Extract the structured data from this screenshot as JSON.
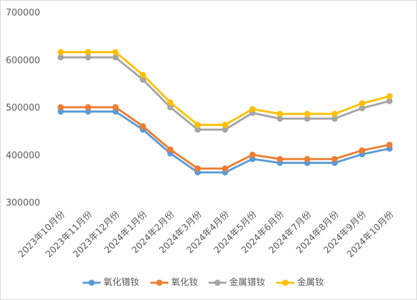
{
  "chart_data": {
    "type": "line",
    "categories": [
      "2023年10月份",
      "2023年11月份",
      "2023年12月份",
      "2024年1月份",
      "2024年2月份",
      "2024年3月份",
      "2024年4月份",
      "2024年5月份",
      "2024年6月份",
      "2024年7月份",
      "2024年8月份",
      "2024年9月份",
      "2024年10月份"
    ],
    "series": [
      {
        "name": "氧化镨钕",
        "color": "#5b9bd5",
        "values": [
          493000,
          493000,
          493000,
          455000,
          405000,
          365000,
          365000,
          393000,
          385000,
          385000,
          385000,
          403000,
          415000
        ]
      },
      {
        "name": "氧化钕",
        "color": "#ed7d31",
        "values": [
          502000,
          502000,
          502000,
          462000,
          413000,
          373000,
          373000,
          402000,
          393000,
          393000,
          393000,
          411000,
          423000
        ]
      },
      {
        "name": "金属镨钕",
        "color": "#a5a5a5",
        "values": [
          607000,
          607000,
          607000,
          560000,
          502000,
          455000,
          455000,
          490000,
          478000,
          478000,
          478000,
          500000,
          515000
        ]
      },
      {
        "name": "金属钕",
        "color": "#ffc000",
        "values": [
          618000,
          618000,
          618000,
          570000,
          512000,
          465000,
          465000,
          498000,
          488000,
          488000,
          488000,
          510000,
          525000
        ]
      }
    ],
    "ylim": [
      300000,
      700000
    ],
    "yticks": [
      300000,
      400000,
      500000,
      600000,
      700000
    ],
    "grid": false
  }
}
